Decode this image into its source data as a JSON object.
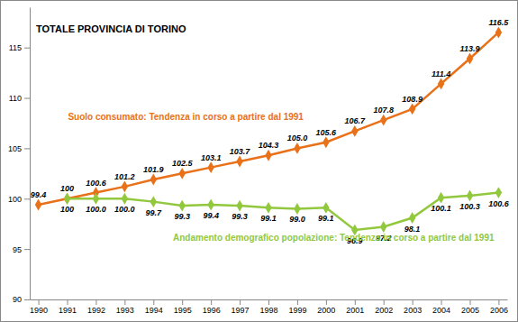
{
  "chart_data": {
    "type": "line",
    "title": "TOTALE PROVINCIA DI TORINO",
    "categories": [
      "1990",
      "1991",
      "1992",
      "1993",
      "1994",
      "1995",
      "1996",
      "1997",
      "1998",
      "1999",
      "2000",
      "2001",
      "2002",
      "2003",
      "2004",
      "2005",
      "2006"
    ],
    "series": [
      {
        "name": "Suolo consumato: Tendenza in corso a partire dal 1991",
        "color": "#e8711a",
        "marker": "diamond",
        "line_style": "solid",
        "values": [
          99.4,
          100,
          100.6,
          101.2,
          101.9,
          102.5,
          103.1,
          103.7,
          104.3,
          105.0,
          105.6,
          106.7,
          107.8,
          108.9,
          111.4,
          113.9,
          116.5
        ],
        "value_labels": [
          "99.4",
          "100",
          "100.6",
          "101.2",
          "101.9",
          "102.5",
          "103.1",
          "103.7",
          "104.3",
          "105.0",
          "105.6",
          "106.7",
          "107.8",
          "108.9",
          "111.4",
          "113.9",
          "116.5"
        ]
      },
      {
        "name": "Andamento demografico popolazione: Tendenza in corso a partire dal 1991",
        "color": "#92c83e",
        "marker": "diamond",
        "line_style": "solid",
        "values": [
          null,
          100,
          100.0,
          100.0,
          99.7,
          99.3,
          99.4,
          99.3,
          99.1,
          99.0,
          99.1,
          96.9,
          97.2,
          98.1,
          100.1,
          100.3,
          100.6
        ],
        "value_labels": [
          null,
          "100",
          "100.0",
          "100.0",
          "99.7",
          "99.3",
          "99.4",
          "99.3",
          "99.1",
          "99.0",
          "99.1",
          "96.9",
          "97.2",
          "98.1",
          "100.1",
          "100.3",
          "100.6"
        ]
      }
    ],
    "ylim": [
      90,
      119
    ],
    "yticks": [
      90,
      95,
      100,
      105,
      110,
      115
    ],
    "grid": false,
    "data_labels": true
  }
}
